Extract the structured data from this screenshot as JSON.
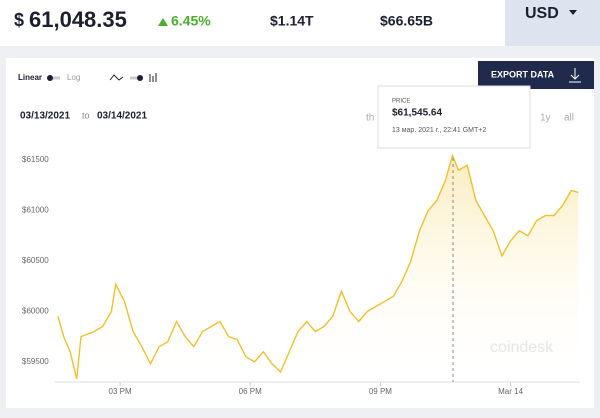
{
  "header": {
    "currency_symbol": "$",
    "price": "61,048.35",
    "change": "6.45%",
    "market_cap": "$1.14T",
    "volume": "$66.65B",
    "currency": "USD"
  },
  "controls": {
    "linear": "Linear",
    "log": "Log",
    "export": "EXPORT DATA",
    "date_from": "03/13/2021",
    "date_sep": "to",
    "date_to": "03/14/2021",
    "range_partial": "th",
    "range_1y": "1y",
    "range_all": "all"
  },
  "tooltip": {
    "label": "PRICE",
    "price": "$61,545.64",
    "time": "13 мар. 2021 г., 22:41 GMT+2"
  },
  "watermark": "coindesk",
  "chart_data": {
    "type": "line",
    "x": [
      13.57,
      13.7,
      13.85,
      14.0,
      14.1,
      14.4,
      14.6,
      14.8,
      14.9,
      15.1,
      15.3,
      15.5,
      15.7,
      15.9,
      16.1,
      16.3,
      16.5,
      16.7,
      16.9,
      17.1,
      17.3,
      17.5,
      17.7,
      17.9,
      18.1,
      18.3,
      18.5,
      18.7,
      18.9,
      19.1,
      19.3,
      19.5,
      19.7,
      19.9,
      20.1,
      20.3,
      20.5,
      20.7,
      20.9,
      21.1,
      21.3,
      21.5,
      21.7,
      21.9,
      22.1,
      22.3,
      22.5,
      22.66,
      22.8,
      23.0,
      23.2,
      23.4,
      23.6,
      23.8,
      24.0,
      24.2,
      24.4,
      24.6,
      24.8,
      25.0,
      25.2,
      25.4,
      25.56
    ],
    "series": [
      {
        "color": "#f0c02c",
        "values": [
          59950,
          59750,
          59600,
          59330,
          59750,
          59800,
          59850,
          60000,
          60270,
          60100,
          59800,
          59650,
          59480,
          59650,
          59700,
          59900,
          59750,
          59650,
          59800,
          59850,
          59900,
          59750,
          59720,
          59550,
          59500,
          59600,
          59480,
          59400,
          59600,
          59800,
          59900,
          59800,
          59850,
          59950,
          60200,
          60000,
          59900,
          60000,
          60050,
          60100,
          60150,
          60300,
          60500,
          60800,
          61000,
          61100,
          61300,
          61545,
          61400,
          61450,
          61100,
          60950,
          60800,
          60550,
          60700,
          60800,
          60750,
          60900,
          60950,
          60950,
          61050,
          61200,
          61180
        ]
      }
    ],
    "xlim": [
      13.5,
      25.6
    ],
    "xticks": [
      {
        "value": 15,
        "label": "03 PM"
      },
      {
        "value": 18,
        "label": "06 PM"
      },
      {
        "value": 21,
        "label": "09 PM"
      },
      {
        "value": 24,
        "label": "Mar 14"
      }
    ],
    "ylim": [
      59300,
      61650
    ],
    "yticks": [
      {
        "value": 59500,
        "label": "$59500"
      },
      {
        "value": 60000,
        "label": "$60000"
      },
      {
        "value": 60500,
        "label": "$60500"
      },
      {
        "value": 61000,
        "label": "$61000"
      },
      {
        "value": 61500,
        "label": "$61500"
      }
    ],
    "grid": false
  }
}
